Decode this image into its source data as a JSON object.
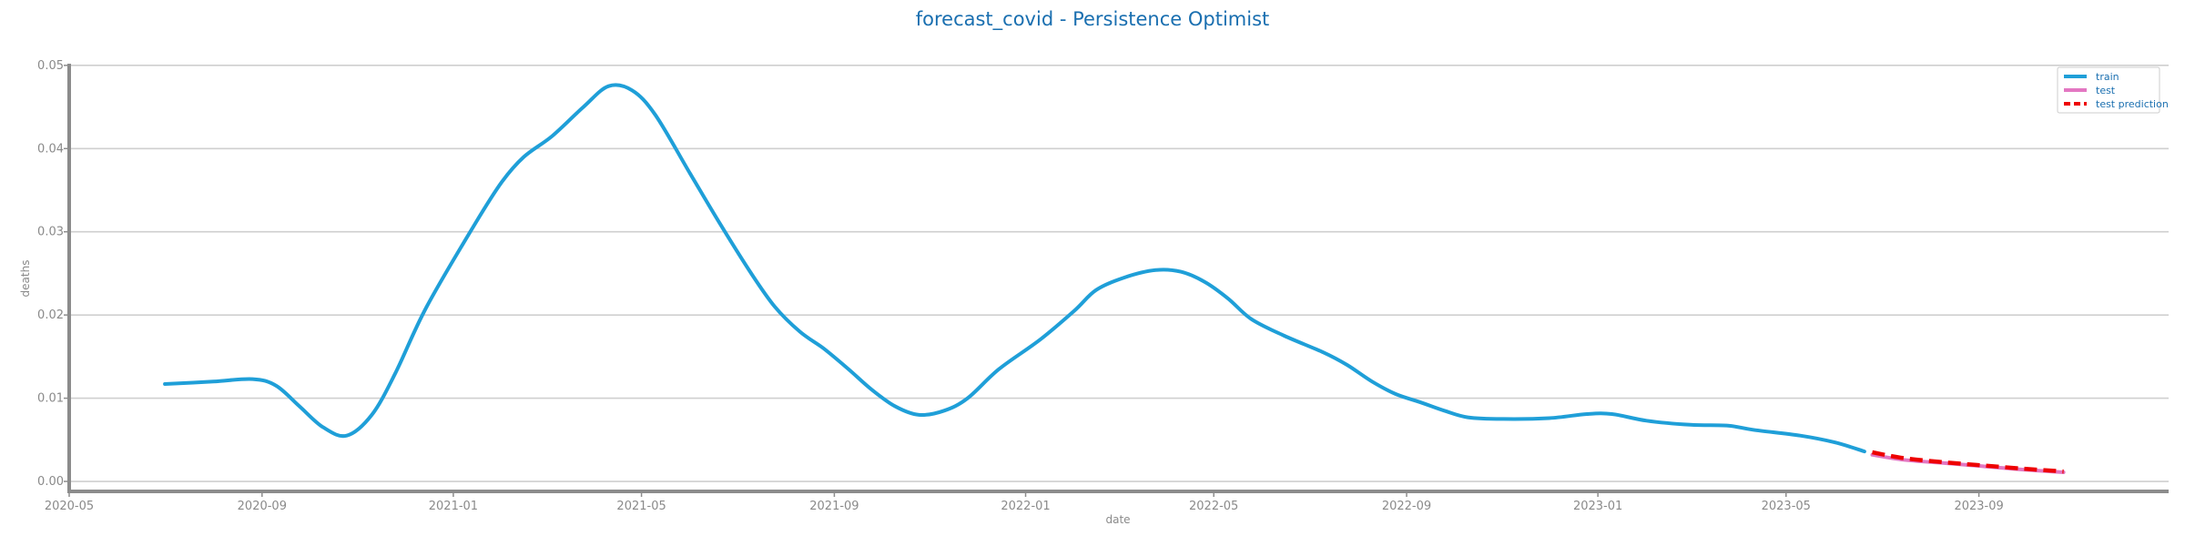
{
  "chart_data": {
    "type": "line",
    "title": "forecast_covid - Persistence Optimist",
    "xlabel": "date",
    "ylabel": "deaths",
    "xlim": [
      "2020-05-01",
      "2023-12-31"
    ],
    "ylim": [
      -0.0012,
      0.0502
    ],
    "x_ticks": [
      "2020-05",
      "2020-09",
      "2021-01",
      "2021-05",
      "2021-09",
      "2022-01",
      "2022-05",
      "2022-09",
      "2023-01",
      "2023-05",
      "2023-09"
    ],
    "y_ticks": [
      "0.00",
      "0.01",
      "0.02",
      "0.03",
      "0.04",
      "0.05"
    ],
    "grid": "horizontal",
    "legend_position": "top-right",
    "series": [
      {
        "name": "train",
        "color": "#1f9fd8",
        "style": "solid",
        "points": [
          [
            "2020-07-01",
            0.0117
          ],
          [
            "2020-08-01",
            0.012
          ],
          [
            "2020-08-26",
            0.0123
          ],
          [
            "2020-09-10",
            0.0115
          ],
          [
            "2020-09-25",
            0.009
          ],
          [
            "2020-10-10",
            0.0065
          ],
          [
            "2020-10-25",
            0.0055
          ],
          [
            "2020-11-10",
            0.008
          ],
          [
            "2020-11-25",
            0.013
          ],
          [
            "2020-12-15",
            0.021
          ],
          [
            "2021-01-15",
            0.031
          ],
          [
            "2021-02-01",
            0.036
          ],
          [
            "2021-02-15",
            0.039
          ],
          [
            "2021-03-05",
            0.0415
          ],
          [
            "2021-03-25",
            0.045
          ],
          [
            "2021-04-10",
            0.0475
          ],
          [
            "2021-04-25",
            0.047
          ],
          [
            "2021-05-10",
            0.044
          ],
          [
            "2021-06-01",
            0.037
          ],
          [
            "2021-06-20",
            0.031
          ],
          [
            "2021-07-10",
            0.025
          ],
          [
            "2021-07-25",
            0.021
          ],
          [
            "2021-08-10",
            0.018
          ],
          [
            "2021-08-25",
            0.016
          ],
          [
            "2021-09-10",
            0.0135
          ],
          [
            "2021-09-25",
            0.011
          ],
          [
            "2021-10-10",
            0.009
          ],
          [
            "2021-10-25",
            0.008
          ],
          [
            "2021-11-10",
            0.0085
          ],
          [
            "2021-11-25",
            0.01
          ],
          [
            "2021-12-15",
            0.0135
          ],
          [
            "2022-01-10",
            0.017
          ],
          [
            "2022-02-01",
            0.0205
          ],
          [
            "2022-02-15",
            0.023
          ],
          [
            "2022-03-05",
            0.0245
          ],
          [
            "2022-03-25",
            0.0254
          ],
          [
            "2022-04-10",
            0.0252
          ],
          [
            "2022-04-25",
            0.024
          ],
          [
            "2022-05-10",
            0.022
          ],
          [
            "2022-05-25",
            0.0195
          ],
          [
            "2022-06-15",
            0.0175
          ],
          [
            "2022-07-10",
            0.0155
          ],
          [
            "2022-07-25",
            0.014
          ],
          [
            "2022-08-10",
            0.012
          ],
          [
            "2022-08-25",
            0.0105
          ],
          [
            "2022-09-10",
            0.0095
          ],
          [
            "2022-09-25",
            0.0085
          ],
          [
            "2022-10-10",
            0.0077
          ],
          [
            "2022-11-01",
            0.0075
          ],
          [
            "2022-12-01",
            0.0076
          ],
          [
            "2022-12-25",
            0.0081
          ],
          [
            "2023-01-10",
            0.0081
          ],
          [
            "2023-02-01",
            0.0073
          ],
          [
            "2023-03-01",
            0.0068
          ],
          [
            "2023-03-25",
            0.0067
          ],
          [
            "2023-04-10",
            0.0062
          ],
          [
            "2023-05-10",
            0.0055
          ],
          [
            "2023-06-01",
            0.0047
          ],
          [
            "2023-06-20",
            0.0036
          ]
        ]
      },
      {
        "name": "test",
        "color": "#e377c2",
        "style": "solid",
        "points": [
          [
            "2023-06-25",
            0.0032
          ],
          [
            "2023-07-15",
            0.0026
          ],
          [
            "2023-08-10",
            0.0022
          ],
          [
            "2023-09-05",
            0.0018
          ],
          [
            "2023-10-01",
            0.0014
          ],
          [
            "2023-10-25",
            0.0011
          ]
        ]
      },
      {
        "name": "test prediction",
        "color": "#ee0000",
        "style": "dashed",
        "points": [
          [
            "2023-06-25",
            0.0035
          ],
          [
            "2023-07-15",
            0.0028
          ],
          [
            "2023-08-10",
            0.0023
          ],
          [
            "2023-09-05",
            0.0019
          ],
          [
            "2023-10-01",
            0.0015
          ],
          [
            "2023-10-25",
            0.0012
          ]
        ]
      }
    ]
  }
}
